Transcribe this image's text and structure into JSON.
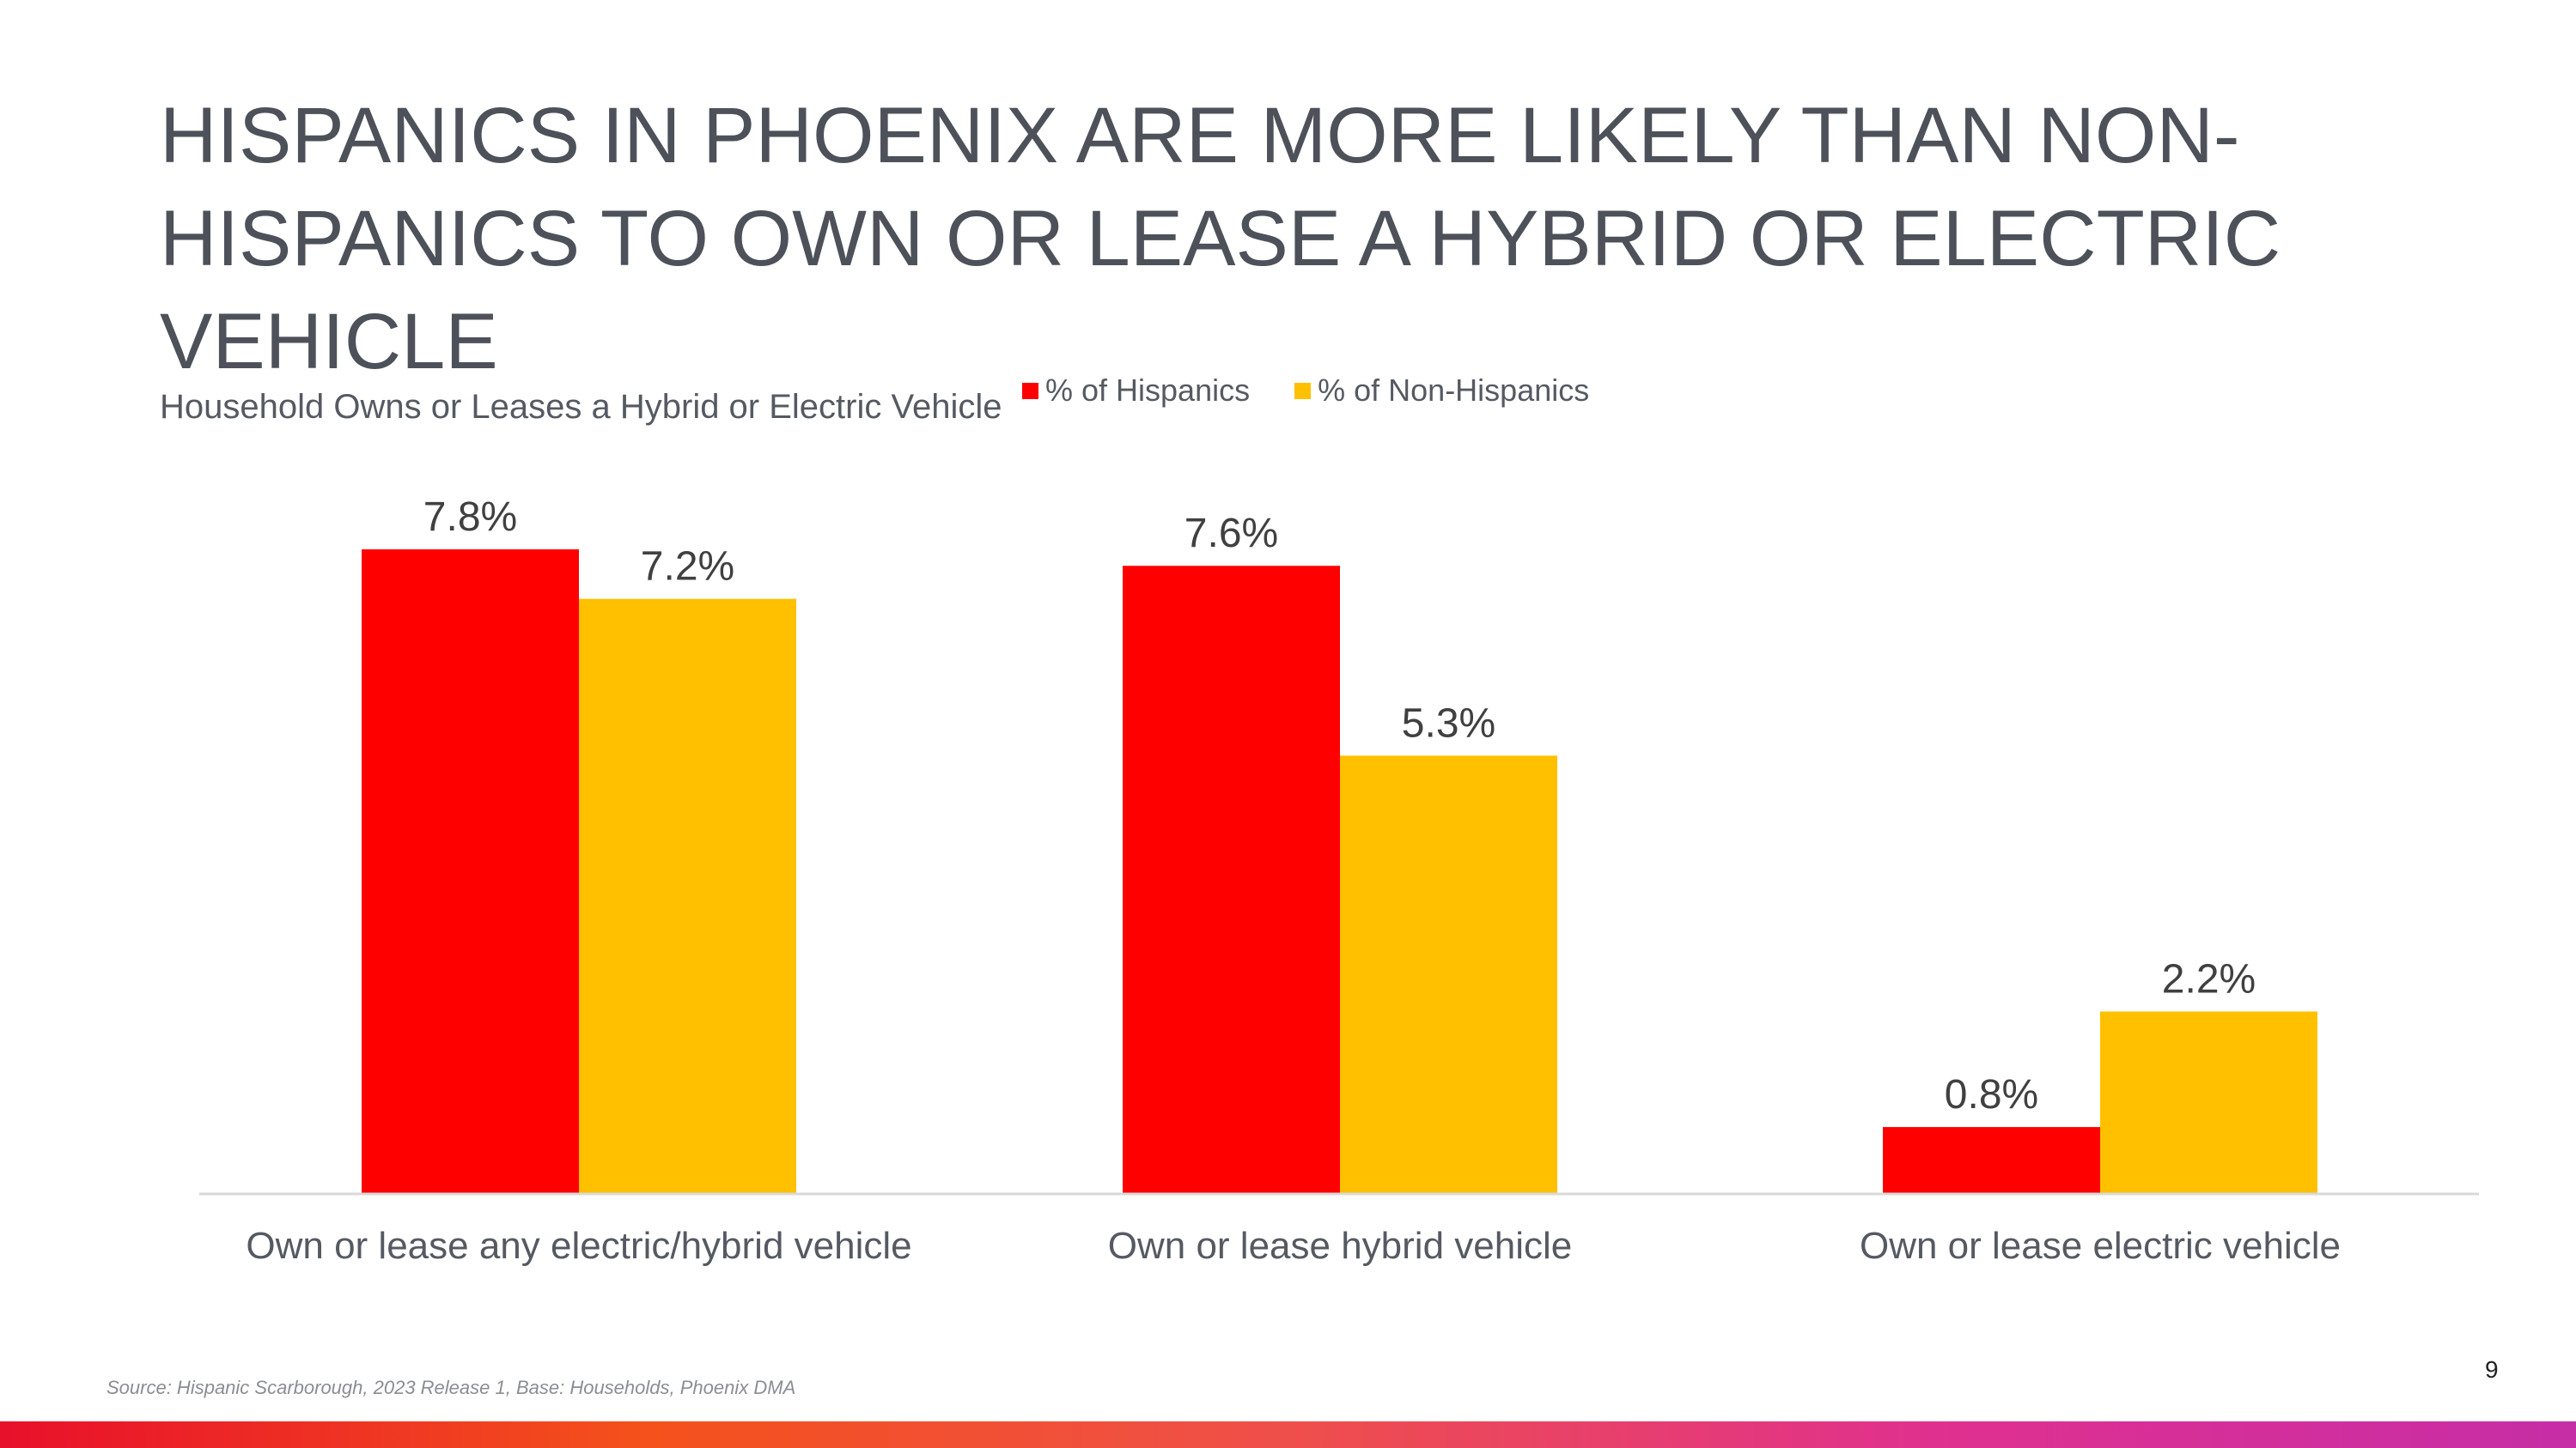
{
  "title": "HISPANICS IN PHOENIX ARE MORE LIKELY THAN NON-HISPANICS TO OWN OR LEASE A HYBRID OR ELECTRIC VEHICLE",
  "footer": {
    "source": "Source: Hispanic Scarborough, 2023 Release 1, Base: Households, Phoenix DMA",
    "page_number": "9"
  },
  "colors": {
    "hispanics": "#ff0000",
    "non_hispanics": "#ffc000",
    "axis": "#d9d9d9",
    "label": "#404040",
    "category": "#555a62"
  },
  "chart_data": {
    "type": "bar",
    "title": "Household Owns or Leases a Hybrid or Electric Vehicle",
    "categories": [
      "Own or lease any electric/hybrid vehicle",
      "Own or lease hybrid vehicle",
      "Own or lease electric vehicle"
    ],
    "series": [
      {
        "name": "% of Hispanics",
        "values": [
          7.8,
          7.6,
          0.8
        ],
        "labels": [
          "7.8%",
          "7.6%",
          "0.8%"
        ]
      },
      {
        "name": "% of Non-Hispanics",
        "values": [
          7.2,
          5.3,
          2.2
        ],
        "labels": [
          "7.2%",
          "5.3%",
          "2.2%"
        ]
      }
    ],
    "ylim": [
      0,
      7.8
    ],
    "xlabel": "",
    "ylabel": "",
    "legend": "top",
    "grid": false
  }
}
